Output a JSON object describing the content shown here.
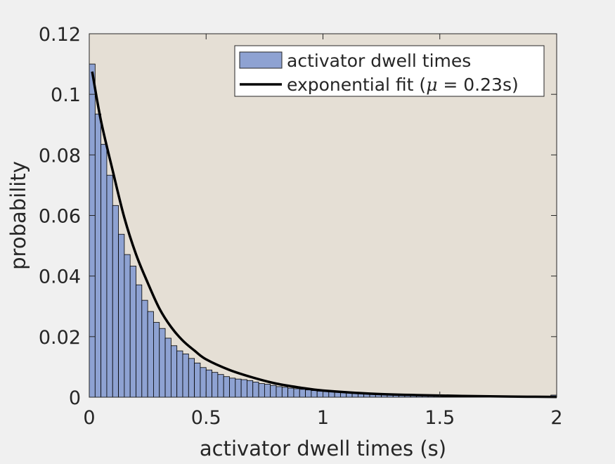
{
  "chart_data": {
    "type": "bar",
    "title": "",
    "xlabel": "activator dwell times (s)",
    "ylabel": "probability",
    "xlim": [
      0,
      2
    ],
    "ylim": [
      0,
      0.12
    ],
    "xticks": [
      "0",
      "0.5",
      "1",
      "1.5",
      "2"
    ],
    "xtick_values": [
      0,
      0.5,
      1,
      1.5,
      2
    ],
    "yticks": [
      "0",
      "0.02",
      "0.04",
      "0.06",
      "0.08",
      "0.1",
      "0.12"
    ],
    "ytick_values": [
      0,
      0.02,
      0.04,
      0.06,
      0.08,
      0.1,
      0.12
    ],
    "grid": false,
    "legend_position": "top-right",
    "colors": {
      "background": "#e5dfd5",
      "figure": "#f0f0f0",
      "bar_fill": "#8ea2d2",
      "bar_edge": "#000000",
      "fit_line": "#000000"
    },
    "histogram": {
      "name": "activator dwell times",
      "bin_width": 0.025,
      "x_start": 0,
      "values": [
        0.11,
        0.0935,
        0.0835,
        0.0733,
        0.0633,
        0.0538,
        0.0471,
        0.0433,
        0.0371,
        0.032,
        0.0283,
        0.0247,
        0.0227,
        0.0195,
        0.017,
        0.0153,
        0.0143,
        0.0128,
        0.0113,
        0.0098,
        0.009,
        0.0082,
        0.0075,
        0.0068,
        0.0063,
        0.006,
        0.0058,
        0.0055,
        0.005,
        0.0045,
        0.0043,
        0.0039,
        0.0035,
        0.0033,
        0.003,
        0.0028,
        0.0026,
        0.0024,
        0.0022,
        0.002,
        0.0019,
        0.0018,
        0.0017,
        0.0016,
        0.0015,
        0.0014,
        0.0013,
        0.0012,
        0.0011,
        0.001,
        0.001,
        0.0009,
        0.0009,
        0.0008,
        0.0008,
        0.0007,
        0.0007,
        0.0007,
        0.0006,
        0.0006,
        0.0006,
        0.0005,
        0.0005,
        0.0005,
        0.0005,
        0.0004,
        0.0004,
        0.0004,
        0.0004,
        0.0004,
        0.0004,
        0.0003,
        0.0003,
        0.0003,
        0.0003,
        0.0003,
        0.0003,
        0.0003,
        0.0003,
        0.0007
      ]
    },
    "fit": {
      "name_prefix": "exponential fit (",
      "name_symbol": "μ",
      "name_suffix": " = 0.23s)",
      "mu": 0.23,
      "x": [
        0.0125,
        0.05,
        0.1,
        0.15,
        0.2,
        0.25,
        0.3,
        0.35,
        0.4,
        0.45,
        0.5,
        0.6,
        0.7,
        0.8,
        0.9,
        1.0,
        1.2,
        1.4,
        1.6,
        1.8,
        2.0
      ],
      "y": [
        0.1075,
        0.0913,
        0.0749,
        0.0593,
        0.0472,
        0.0378,
        0.0293,
        0.0232,
        0.0187,
        0.0154,
        0.0125,
        0.009,
        0.0065,
        0.0045,
        0.0032,
        0.0022,
        0.0012,
        0.0007,
        0.0004,
        0.0002,
        0.0001
      ]
    }
  }
}
